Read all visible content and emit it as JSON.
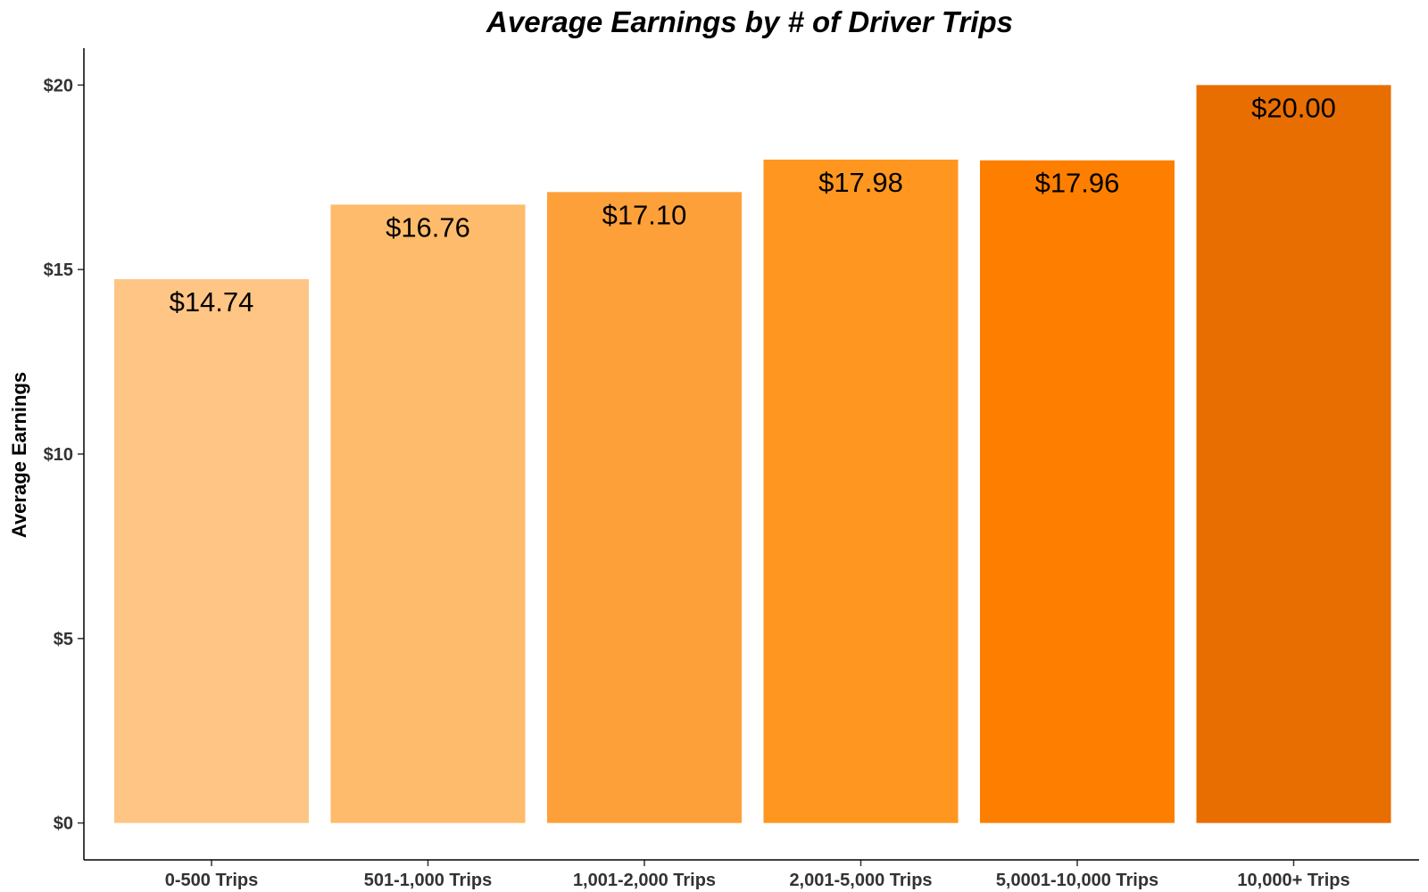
{
  "chart_data": {
    "type": "bar",
    "title": "Average Earnings by # of Driver Trips",
    "xlabel": "",
    "ylabel": "Average Earnings",
    "categories": [
      "0-500 Trips",
      "501-1,000 Trips",
      "1,001-2,000 Trips",
      "2,001-5,000 Trips",
      "5,0001-10,000 Trips",
      "10,000+ Trips"
    ],
    "values": [
      14.74,
      16.76,
      17.1,
      17.98,
      17.96,
      20.0
    ],
    "data_labels": [
      "$14.74",
      "$16.76",
      "$17.10",
      "$17.98",
      "$17.96",
      "$20.00"
    ],
    "colors": [
      "#FEC585",
      "#FEBB6B",
      "#FEA03A",
      "#FE9620",
      "#FE7F00",
      "#E86E02"
    ],
    "yticks": [
      0,
      5,
      10,
      15,
      20
    ],
    "ytick_labels": [
      "$0",
      "$5",
      "$10",
      "$15",
      "$20"
    ],
    "ylim": [
      -1,
      21
    ],
    "grid": false,
    "legend": "none"
  }
}
